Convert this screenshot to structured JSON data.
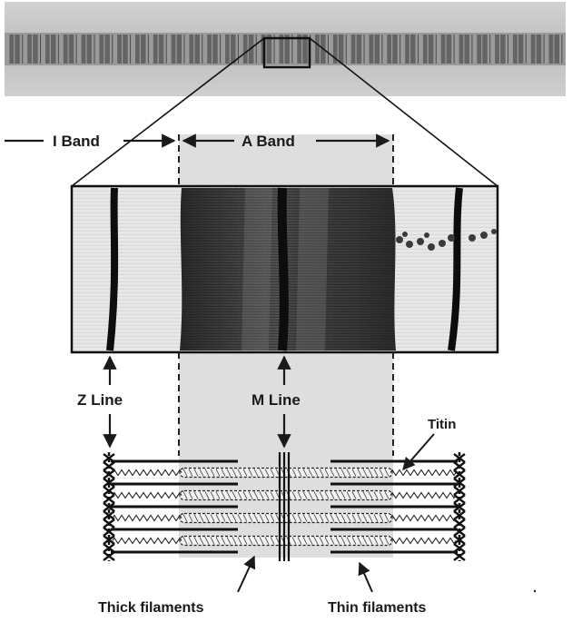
{
  "labels": {
    "i_band": "I Band",
    "a_band": "A Band",
    "z_line": "Z Line",
    "m_line": "M Line",
    "titin": "Titin",
    "thick_filaments": "Thick filaments",
    "thin_filaments": "Thin filaments"
  },
  "colors": {
    "a_band_shade": "#dedede",
    "ink": "#1a1a1a",
    "micrograph_light": "#e6e6e6",
    "micrograph_dark": "#101010"
  },
  "myofibril_top": {
    "striation_count": 31,
    "highlighted_striation": 14
  },
  "sarcomere_schematic": {
    "thick_filament_rows": 4,
    "thin_filament_rows": 5
  }
}
